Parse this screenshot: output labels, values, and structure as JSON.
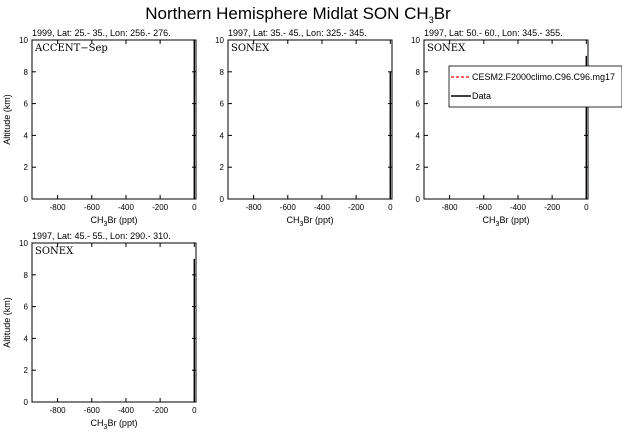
{
  "figure": {
    "title_main": "Northern Hemisphere Midlat SON CH",
    "title_sub": "3",
    "title_end": "Br"
  },
  "legend": {
    "model_label": "CESM2.F2000climo.C96.C96.mg17",
    "data_label": "Data",
    "model_color": "#ff0000",
    "data_color": "#000000"
  },
  "chart_data": [
    {
      "type": "line",
      "header": "1999, Lat: 25.- 35., Lon: 256.- 276.",
      "campaign": "ACCENT−Sep",
      "xlabel_main": "CH",
      "xlabel_sub": "3",
      "xlabel_end": "Br (ppt)",
      "ylabel": "Altitude (km)",
      "xlim": [
        -950,
        10
      ],
      "ylim": [
        0,
        10
      ],
      "xticks": [
        -800,
        -600,
        -400,
        -200,
        0
      ],
      "yticks": [
        0,
        2,
        4,
        6,
        8,
        10
      ],
      "series": [
        {
          "name": "CESM2.F2000climo.C96.C96.mg17",
          "x": [
            0,
            0
          ],
          "y": [
            0,
            10
          ]
        },
        {
          "name": "Data",
          "x": [
            0,
            0
          ],
          "y": [
            0,
            10
          ]
        }
      ]
    },
    {
      "type": "line",
      "header": "1997, Lat: 35.- 45., Lon: 325.- 345.",
      "campaign": "SONEX",
      "xlabel_main": "CH",
      "xlabel_sub": "3",
      "xlabel_end": "Br (ppt)",
      "ylabel": "",
      "xlim": [
        -950,
        10
      ],
      "ylim": [
        0,
        10
      ],
      "xticks": [
        -800,
        -600,
        -400,
        -200,
        0
      ],
      "yticks": [
        0,
        2,
        4,
        6,
        8,
        10
      ],
      "series": [
        {
          "name": "CESM2.F2000climo.C96.C96.mg17",
          "x": [
            0,
            0
          ],
          "y": [
            0,
            8
          ]
        },
        {
          "name": "Data",
          "x": [
            0,
            0
          ],
          "y": [
            0,
            8
          ]
        }
      ]
    },
    {
      "type": "line",
      "header": "1997, Lat: 50.- 60., Lon: 345.- 355.",
      "campaign": "SONEX",
      "xlabel_main": "CH",
      "xlabel_sub": "3",
      "xlabel_end": "Br (ppt)",
      "ylabel": "",
      "xlim": [
        -950,
        10
      ],
      "ylim": [
        0,
        10
      ],
      "xticks": [
        -800,
        -600,
        -400,
        -200,
        0
      ],
      "yticks": [
        0,
        2,
        4,
        6,
        8,
        10
      ],
      "series": [
        {
          "name": "CESM2.F2000climo.C96.C96.mg17",
          "x": [
            0,
            0
          ],
          "y": [
            0,
            9
          ]
        },
        {
          "name": "Data",
          "x": [
            0,
            0
          ],
          "y": [
            0,
            9
          ]
        }
      ]
    },
    {
      "type": "line",
      "header": "1997, Lat: 45.- 55., Lon: 290.- 310.",
      "campaign": "SONEX",
      "xlabel_main": "CH",
      "xlabel_sub": "3",
      "xlabel_end": "Br (ppt)",
      "ylabel": "Altitude (km)",
      "xlim": [
        -950,
        10
      ],
      "ylim": [
        0,
        10
      ],
      "xticks": [
        -800,
        -600,
        -400,
        -200,
        0
      ],
      "yticks": [
        0,
        2,
        4,
        6,
        8,
        10
      ],
      "series": [
        {
          "name": "CESM2.F2000climo.C96.C96.mg17",
          "x": [
            0,
            0
          ],
          "y": [
            0,
            9
          ]
        },
        {
          "name": "Data",
          "x": [
            0,
            0
          ],
          "y": [
            0,
            9
          ]
        }
      ]
    }
  ]
}
